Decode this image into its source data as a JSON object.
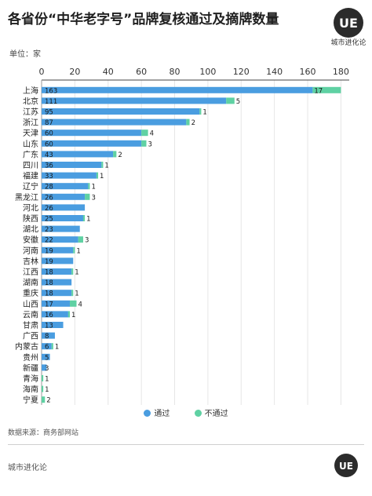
{
  "header": {
    "title": "各省份“中华老字号”品牌复核通过及摘牌数量",
    "unit": "单位：家",
    "brand": "城市进化论",
    "logo_text": "UE"
  },
  "legend": {
    "pass": "通过",
    "fail": "不通过"
  },
  "footer": {
    "source": "数据来源：商务部网站",
    "brand": "城市进化论"
  },
  "colors": {
    "pass": "#4a9de0",
    "fail": "#5fd1a3"
  },
  "chart_data": {
    "type": "bar",
    "orientation": "horizontal",
    "stacked": true,
    "categories": [
      "上海",
      "北京",
      "江苏",
      "浙江",
      "天津",
      "山东",
      "广东",
      "四川",
      "福建",
      "辽宁",
      "黑龙江",
      "河北",
      "陕西",
      "湖北",
      "安徽",
      "河南",
      "吉林",
      "江西",
      "湖南",
      "重庆",
      "山西",
      "云南",
      "甘肃",
      "广西",
      "内蒙古",
      "贵州",
      "新疆",
      "青海",
      "海南",
      "宁夏"
    ],
    "series": [
      {
        "name": "通过",
        "values": [
          163,
          111,
          95,
          87,
          60,
          60,
          43,
          36,
          33,
          28,
          26,
          26,
          25,
          23,
          22,
          19,
          19,
          18,
          18,
          18,
          17,
          16,
          13,
          8,
          6,
          5,
          3,
          0,
          0,
          0
        ]
      },
      {
        "name": "不通过",
        "values": [
          17,
          5,
          1,
          2,
          4,
          3,
          2,
          1,
          1,
          1,
          3,
          0,
          1,
          0,
          3,
          1,
          0,
          1,
          0,
          1,
          4,
          1,
          0,
          0,
          1,
          0,
          0,
          1,
          1,
          2
        ]
      }
    ],
    "xlim": [
      0,
      185
    ],
    "xticks": [
      0,
      20,
      40,
      60,
      80,
      100,
      120,
      140,
      160,
      180
    ],
    "grid": true,
    "legend_position": "bottom"
  }
}
